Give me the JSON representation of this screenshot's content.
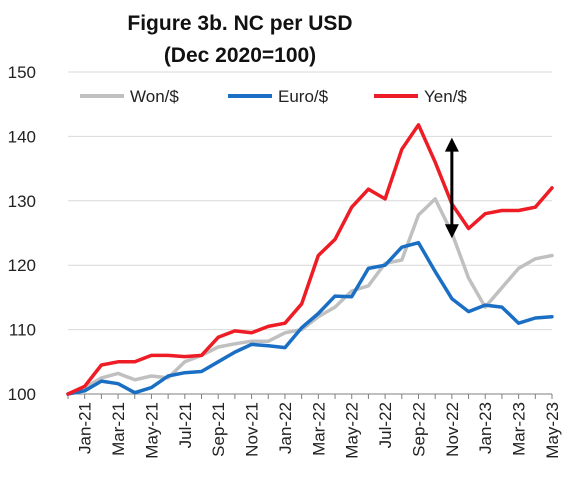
{
  "chart_data": {
    "type": "line",
    "title": "Figure 3b. NC per USD",
    "subtitle": "(Dec 2020=100)",
    "xlabel": "",
    "ylabel": "",
    "ylim": [
      100,
      150
    ],
    "yticks": [
      100,
      110,
      120,
      130,
      140,
      150
    ],
    "grid": true,
    "legend_position": "top",
    "x": [
      "Dec-20",
      "Jan-21",
      "Feb-21",
      "Mar-21",
      "Apr-21",
      "May-21",
      "Jun-21",
      "Jul-21",
      "Aug-21",
      "Sep-21",
      "Oct-21",
      "Nov-21",
      "Dec-21",
      "Jan-22",
      "Feb-22",
      "Mar-22",
      "Apr-22",
      "May-22",
      "Jun-22",
      "Jul-22",
      "Aug-22",
      "Sep-22",
      "Oct-22",
      "Nov-22",
      "Dec-22",
      "Jan-23",
      "Feb-23",
      "Mar-23",
      "Apr-23",
      "May-23"
    ],
    "xtick_labels": [
      "Jan-21",
      "Mar-21",
      "May-21",
      "Jul-21",
      "Sep-21",
      "Nov-21",
      "Jan-22",
      "Mar-22",
      "May-22",
      "Jul-22",
      "Sep-22",
      "Nov-22",
      "Jan-23",
      "Mar-23",
      "May-23"
    ],
    "series": [
      {
        "name": "Won/$",
        "color": "#c0c0c0",
        "values": [
          100.0,
          101.0,
          102.5,
          103.2,
          102.2,
          102.8,
          102.5,
          105.0,
          106.0,
          107.3,
          107.8,
          108.2,
          108.2,
          109.5,
          110.0,
          112.0,
          113.5,
          116.0,
          116.8,
          120.3,
          120.8,
          127.8,
          130.3,
          125.0,
          118.0,
          113.5,
          116.5,
          119.5,
          121.0,
          121.5
        ]
      },
      {
        "name": "Euro/$",
        "color": "#1a6fc4",
        "values": [
          100.0,
          100.5,
          102.0,
          101.6,
          100.2,
          101.0,
          102.8,
          103.3,
          103.5,
          105.0,
          106.5,
          107.7,
          107.5,
          107.2,
          110.3,
          112.5,
          115.2,
          115.1,
          119.5,
          120.0,
          122.8,
          123.5,
          119.0,
          114.8,
          112.8,
          113.8,
          113.5,
          111.0,
          111.8,
          112.0
        ]
      },
      {
        "name": "Yen/$",
        "color": "#ee1c25",
        "values": [
          100.0,
          101.2,
          104.5,
          105.0,
          105.0,
          106.0,
          106.0,
          105.8,
          106.0,
          108.8,
          109.8,
          109.5,
          110.5,
          111.0,
          114.0,
          121.5,
          124.0,
          129.0,
          131.8,
          130.3,
          138.0,
          141.8,
          136.0,
          129.5,
          125.7,
          128.0,
          128.5,
          128.5,
          129.0,
          132.0
        ]
      }
    ],
    "annotations": [
      {
        "type": "double-arrow",
        "color": "#000000",
        "x": "Nov-22",
        "from": 124.5,
        "to": 139.5
      }
    ]
  }
}
